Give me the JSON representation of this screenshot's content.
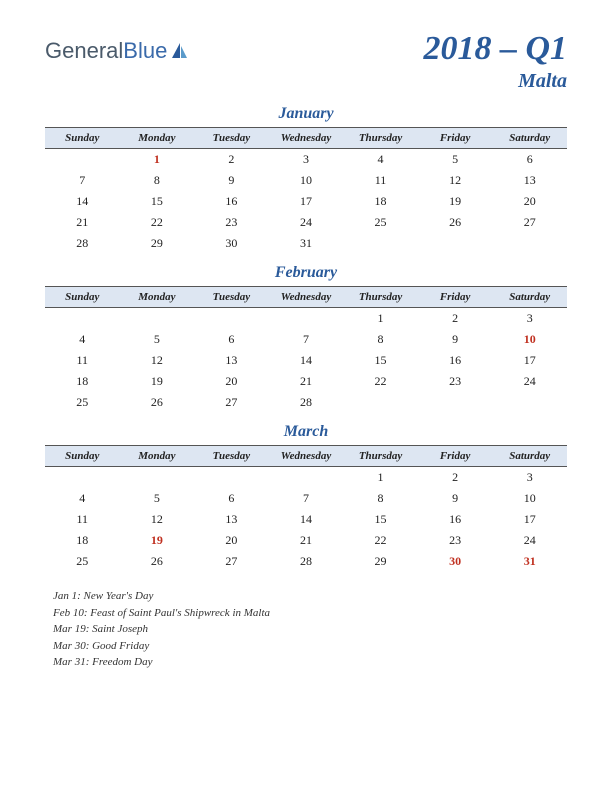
{
  "logo": {
    "general": "General",
    "blue": "Blue"
  },
  "header": {
    "quarter": "2018 – Q1",
    "country": "Malta"
  },
  "colors": {
    "brand": "#2a5a9a",
    "header_bg": "#dde6f2",
    "holiday": "#c03020",
    "border": "#555555",
    "text": "#222222",
    "background": "#ffffff"
  },
  "weekdays": [
    "Sunday",
    "Monday",
    "Tuesday",
    "Wednesday",
    "Thursday",
    "Friday",
    "Saturday"
  ],
  "months": [
    {
      "name": "January",
      "weeks": [
        [
          {
            "d": ""
          },
          {
            "d": "1",
            "h": true
          },
          {
            "d": "2"
          },
          {
            "d": "3"
          },
          {
            "d": "4"
          },
          {
            "d": "5"
          },
          {
            "d": "6"
          }
        ],
        [
          {
            "d": "7"
          },
          {
            "d": "8"
          },
          {
            "d": "9"
          },
          {
            "d": "10"
          },
          {
            "d": "11"
          },
          {
            "d": "12"
          },
          {
            "d": "13"
          }
        ],
        [
          {
            "d": "14"
          },
          {
            "d": "15"
          },
          {
            "d": "16"
          },
          {
            "d": "17"
          },
          {
            "d": "18"
          },
          {
            "d": "19"
          },
          {
            "d": "20"
          }
        ],
        [
          {
            "d": "21"
          },
          {
            "d": "22"
          },
          {
            "d": "23"
          },
          {
            "d": "24"
          },
          {
            "d": "25"
          },
          {
            "d": "26"
          },
          {
            "d": "27"
          }
        ],
        [
          {
            "d": "28"
          },
          {
            "d": "29"
          },
          {
            "d": "30"
          },
          {
            "d": "31"
          },
          {
            "d": ""
          },
          {
            "d": ""
          },
          {
            "d": ""
          }
        ]
      ]
    },
    {
      "name": "February",
      "weeks": [
        [
          {
            "d": ""
          },
          {
            "d": ""
          },
          {
            "d": ""
          },
          {
            "d": ""
          },
          {
            "d": "1"
          },
          {
            "d": "2"
          },
          {
            "d": "3"
          }
        ],
        [
          {
            "d": "4"
          },
          {
            "d": "5"
          },
          {
            "d": "6"
          },
          {
            "d": "7"
          },
          {
            "d": "8"
          },
          {
            "d": "9"
          },
          {
            "d": "10",
            "h": true
          }
        ],
        [
          {
            "d": "11"
          },
          {
            "d": "12"
          },
          {
            "d": "13"
          },
          {
            "d": "14"
          },
          {
            "d": "15"
          },
          {
            "d": "16"
          },
          {
            "d": "17"
          }
        ],
        [
          {
            "d": "18"
          },
          {
            "d": "19"
          },
          {
            "d": "20"
          },
          {
            "d": "21"
          },
          {
            "d": "22"
          },
          {
            "d": "23"
          },
          {
            "d": "24"
          }
        ],
        [
          {
            "d": "25"
          },
          {
            "d": "26"
          },
          {
            "d": "27"
          },
          {
            "d": "28"
          },
          {
            "d": ""
          },
          {
            "d": ""
          },
          {
            "d": ""
          }
        ]
      ]
    },
    {
      "name": "March",
      "weeks": [
        [
          {
            "d": ""
          },
          {
            "d": ""
          },
          {
            "d": ""
          },
          {
            "d": ""
          },
          {
            "d": "1"
          },
          {
            "d": "2"
          },
          {
            "d": "3"
          }
        ],
        [
          {
            "d": "4"
          },
          {
            "d": "5"
          },
          {
            "d": "6"
          },
          {
            "d": "7"
          },
          {
            "d": "8"
          },
          {
            "d": "9"
          },
          {
            "d": "10"
          }
        ],
        [
          {
            "d": "11"
          },
          {
            "d": "12"
          },
          {
            "d": "13"
          },
          {
            "d": "14"
          },
          {
            "d": "15"
          },
          {
            "d": "16"
          },
          {
            "d": "17"
          }
        ],
        [
          {
            "d": "18"
          },
          {
            "d": "19",
            "h": true
          },
          {
            "d": "20"
          },
          {
            "d": "21"
          },
          {
            "d": "22"
          },
          {
            "d": "23"
          },
          {
            "d": "24"
          }
        ],
        [
          {
            "d": "25"
          },
          {
            "d": "26"
          },
          {
            "d": "27"
          },
          {
            "d": "28"
          },
          {
            "d": "29"
          },
          {
            "d": "30",
            "h": true
          },
          {
            "d": "31",
            "h": true
          }
        ]
      ]
    }
  ],
  "holidays": [
    "Jan 1: New Year's Day",
    "Feb 10: Feast of Saint Paul's Shipwreck in Malta",
    "Mar 19: Saint Joseph",
    "Mar 30: Good Friday",
    "Mar 31: Freedom Day"
  ]
}
